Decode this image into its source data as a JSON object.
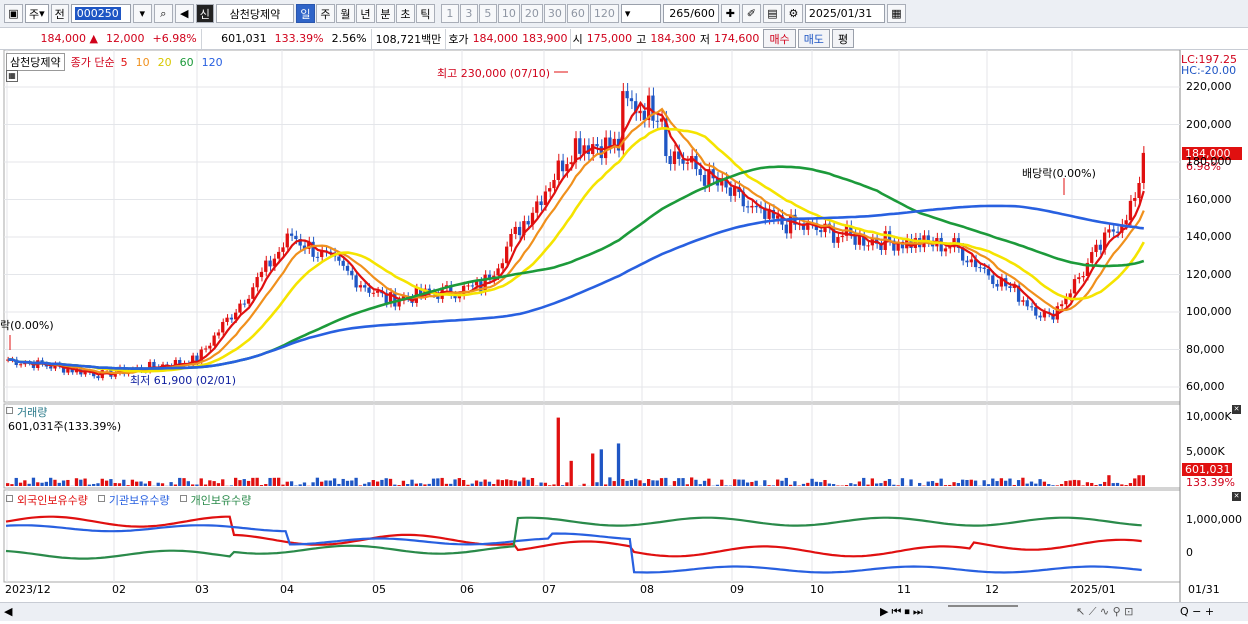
{
  "toolbar": {
    "type": "주",
    "view": "전",
    "code": "000250",
    "badge": "신",
    "stock_name": "삼천당제약",
    "periods": [
      "일",
      "주",
      "월",
      "년",
      "분",
      "초",
      "틱"
    ],
    "active_period": "일",
    "nums": [
      "1",
      "3",
      "5",
      "10",
      "20",
      "30",
      "60",
      "120"
    ],
    "count": "265",
    "count_max": "/600",
    "date": "2025/01/31"
  },
  "quote": {
    "price": "184,000 ▲",
    "change": "12,000",
    "rate": "+6.98%",
    "volume": "601,031",
    "vol_rate": "133.39%",
    "turnover": "2.56%",
    "amount": "108,721백만",
    "ask_label": "호가",
    "ask1": "184,000",
    "ask2": "183,900",
    "open_label": "시",
    "open": "175,000",
    "high_label": "고",
    "high": "184,300",
    "low_label": "저",
    "low": "174,600",
    "buy": "매수",
    "sell": "매도",
    "avg": "평"
  },
  "price_panel": {
    "title": "삼천당제약",
    "ma_label": "종가 단순",
    "ma": [
      "5",
      "10",
      "20",
      "60",
      "120"
    ],
    "ma_colors": [
      "#e01010",
      "#f0901c",
      "#f5e400",
      "#1c9a3a",
      "#2860e0"
    ],
    "high_note": "최고 230,000 (07/10)",
    "low_note": "최저 61,900 (02/01)",
    "ex_div": "배당락(0.00%)",
    "ex_div_left": "락(0.00%)",
    "lc": "LC:197.25",
    "hc": "HC:-20.00",
    "last": "184,000",
    "last_rate": "6.98%",
    "y_ticks": [
      "220,000",
      "200,000",
      "180,000",
      "160,000",
      "140,000",
      "120,000",
      "100,000",
      "80,000",
      "60,000"
    ]
  },
  "volume_panel": {
    "title": "거래량",
    "value": "601,031주(133.39%)",
    "y_ticks": [
      "10,000K",
      "5,000K"
    ],
    "last": "601,031",
    "last_rate": "133.39%"
  },
  "holding_panel": {
    "labels": [
      "외국인보유수량",
      "기관보유수량",
      "개인보유수량"
    ],
    "colors": [
      "#e01010",
      "#2860e0",
      "#2a8a4a"
    ],
    "y_ticks": [
      "1,000,000",
      "0"
    ]
  },
  "x_axis": {
    "labels": [
      "2023/12",
      "02",
      "03",
      "04",
      "05",
      "06",
      "07",
      "08",
      "09",
      "10",
      "11",
      "12",
      "2025/01",
      "01/31"
    ]
  },
  "chart_data": [
    {
      "type": "candlestick",
      "title": "삼천당제약",
      "y_range": [
        55000,
        235000
      ],
      "x": [
        "2023/12",
        "02",
        "03",
        "04",
        "05",
        "06",
        "07",
        "08",
        "09",
        "10",
        "11",
        "12",
        "2025/01"
      ],
      "close": [
        73000,
        65000,
        73000,
        140000,
        105000,
        112000,
        190000,
        185000,
        148000,
        138000,
        134000,
        95000,
        165000
      ],
      "annotations": [
        {
          "label": "최고 230,000 (07/10)",
          "value": 230000
        },
        {
          "label": "최저 61,900 (02/01)",
          "value": 61900
        },
        {
          "label": "배당락(0.00%)"
        }
      ],
      "last_value": 184000
    },
    {
      "type": "bar",
      "title": "거래량",
      "y_range": [
        0,
        11000000
      ],
      "last_value": 601031
    },
    {
      "type": "line",
      "series": [
        {
          "name": "외국인보유수량"
        },
        {
          "name": "기관보유수량"
        },
        {
          "name": "개인보유수량"
        }
      ],
      "y_ticks": [
        1000000,
        0
      ]
    }
  ],
  "status": {
    "zoom_icons": "Q − +"
  }
}
